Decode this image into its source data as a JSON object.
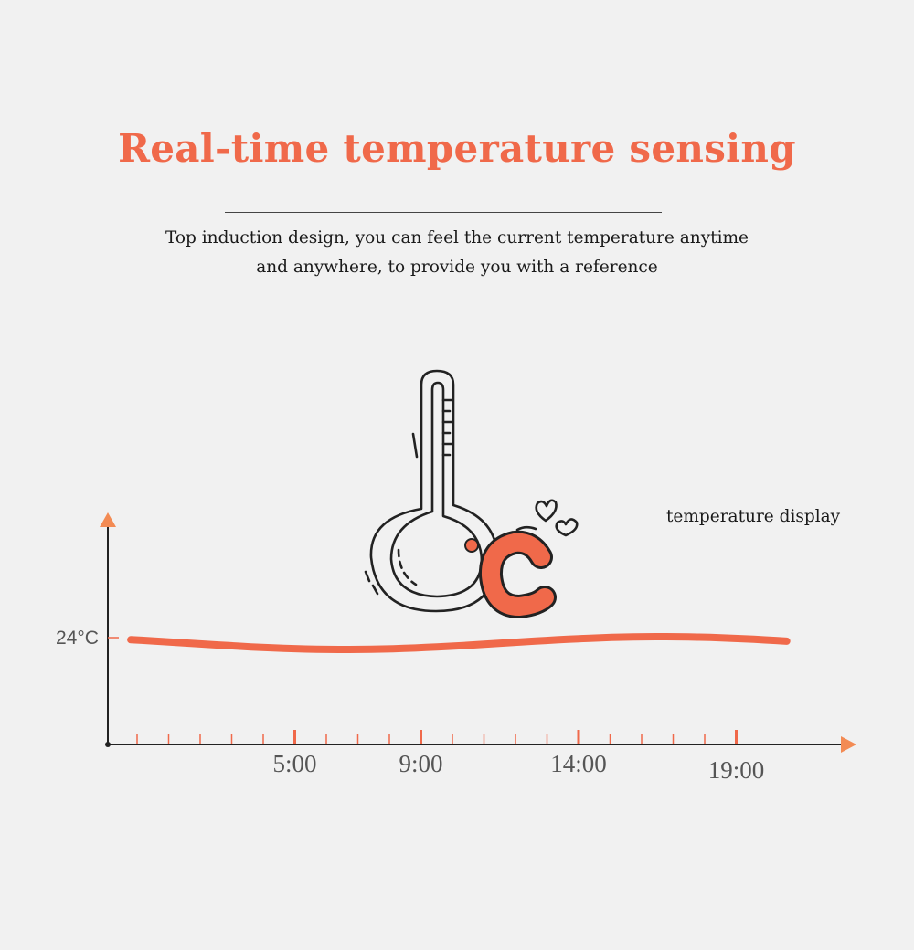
{
  "header": {
    "title": "Real-time temperature sensing",
    "description_line1": "Top induction design, you can feel the current temperature anytime",
    "description_line2": "and anywhere, to provide you with a reference"
  },
  "annotation": {
    "label": "temperature display",
    "thermometer_icon": "thermometer-celsius-icon"
  },
  "colors": {
    "accent": "#f0694a",
    "axis": "#222222",
    "text": "#1a1a1a"
  },
  "chart_data": {
    "type": "line",
    "title": "",
    "xlabel": "",
    "ylabel": "",
    "y_tick_labels": [
      "24°C"
    ],
    "x_tick_labels": [
      "5:00",
      "9:00",
      "14:00",
      "19:00"
    ],
    "x_major_ticks": [
      5,
      9,
      14,
      19
    ],
    "x_minor_step": 1,
    "xlim": [
      0,
      24
    ],
    "series": [
      {
        "x": [
          0,
          3,
          6,
          9,
          12,
          15,
          18,
          21
        ],
        "y": [
          24,
          24,
          24,
          24,
          24,
          24,
          24,
          24
        ]
      }
    ]
  }
}
